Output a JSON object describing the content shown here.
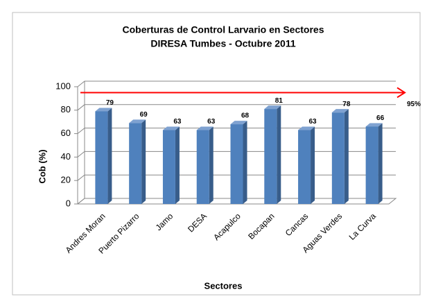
{
  "chart_data": {
    "type": "bar",
    "title": [
      "Coberturas de Control Larvario en Sectores",
      "DIRESA Tumbes - Octubre  2011"
    ],
    "x_label": "Sectores",
    "y_label": "Cob (%)",
    "categories": [
      "Andres Moran",
      "Puerto Pizarro",
      "Jamo",
      "DESA",
      "Acapulco",
      "Bocapan",
      "Cancas",
      "Aguas Verdes",
      "La Curva"
    ],
    "values": [
      79,
      69,
      63,
      63,
      68,
      81,
      63,
      78,
      66
    ],
    "color": "#4f81bd",
    "ylim": [
      0,
      100
    ],
    "yticks": [
      0,
      20,
      40,
      60,
      80,
      100
    ],
    "grid": true,
    "reference_line": {
      "value": 95,
      "label": "95%",
      "color": "#ff0000"
    }
  }
}
